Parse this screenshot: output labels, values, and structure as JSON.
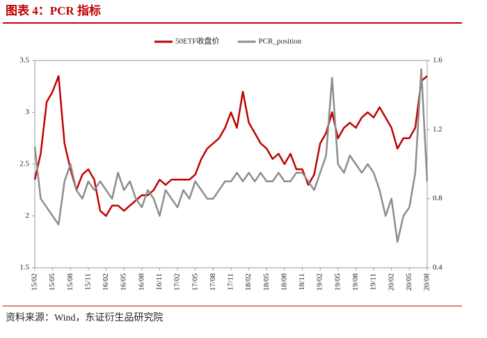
{
  "title": "图表 4：PCR 指标",
  "source": "资料来源：Wind，东证衍生品研究院",
  "chart_data": {
    "type": "line",
    "categories": [
      "15/02",
      null,
      null,
      "15/05",
      null,
      null,
      "15/08",
      null,
      null,
      "15/11",
      null,
      null,
      "16/02",
      null,
      null,
      "16/05",
      null,
      null,
      "16/08",
      null,
      null,
      "16/11",
      null,
      null,
      "17/02",
      null,
      null,
      "17/05",
      null,
      null,
      "17/08",
      null,
      null,
      "17/11",
      null,
      null,
      "18/02",
      null,
      null,
      "18/05",
      null,
      null,
      "18/08",
      null,
      null,
      "18/11",
      null,
      null,
      "19/02",
      null,
      null,
      "19/05",
      null,
      null,
      "19/08",
      null,
      null,
      "19/11",
      null,
      null,
      "20/02",
      null,
      null,
      "20/05",
      null,
      null,
      "20/08"
    ],
    "series": [
      {
        "name": "50ETF收盘价",
        "color": "#c00000",
        "axis": "y",
        "values": [
          2.35,
          2.6,
          3.1,
          3.2,
          3.35,
          2.7,
          2.45,
          2.25,
          2.4,
          2.45,
          2.35,
          2.05,
          2.0,
          2.1,
          2.1,
          2.05,
          2.1,
          2.15,
          2.2,
          2.2,
          2.25,
          2.35,
          2.3,
          2.35,
          2.35,
          2.35,
          2.35,
          2.4,
          2.55,
          2.65,
          2.7,
          2.75,
          2.85,
          3.0,
          2.85,
          3.2,
          2.9,
          2.8,
          2.7,
          2.65,
          2.55,
          2.6,
          2.5,
          2.6,
          2.45,
          2.45,
          2.3,
          2.4,
          2.7,
          2.8,
          3.0,
          2.75,
          2.85,
          2.9,
          2.85,
          2.95,
          3.0,
          2.95,
          3.05,
          2.95,
          2.85,
          2.65,
          2.75,
          2.75,
          2.85,
          3.3,
          3.35
        ]
      },
      {
        "name": "PCR_position",
        "color": "#8c8c8c",
        "axis": "y2",
        "values": [
          1.1,
          0.8,
          0.75,
          0.7,
          0.65,
          0.9,
          1.0,
          0.85,
          0.8,
          0.9,
          0.85,
          0.9,
          0.85,
          0.8,
          0.95,
          0.85,
          0.9,
          0.8,
          0.75,
          0.85,
          0.8,
          0.7,
          0.85,
          0.8,
          0.75,
          0.85,
          0.8,
          0.9,
          0.85,
          0.8,
          0.8,
          0.85,
          0.9,
          0.9,
          0.95,
          0.9,
          0.95,
          0.9,
          0.95,
          0.9,
          0.9,
          0.95,
          0.9,
          0.9,
          0.95,
          0.95,
          0.9,
          0.85,
          0.95,
          1.05,
          1.5,
          1.0,
          0.95,
          1.05,
          1.0,
          0.95,
          1.0,
          0.95,
          0.85,
          0.7,
          0.8,
          0.55,
          0.7,
          0.75,
          0.95,
          1.55,
          0.9
        ]
      }
    ],
    "ylim": [
      1.5,
      3.5
    ],
    "yticks": [
      1.5,
      2,
      2.5,
      3,
      3.5
    ],
    "y2lim": [
      0.4,
      1.6
    ],
    "y2ticks": [
      0.4,
      0.8,
      1.2,
      1.6
    ],
    "legend": "top"
  }
}
